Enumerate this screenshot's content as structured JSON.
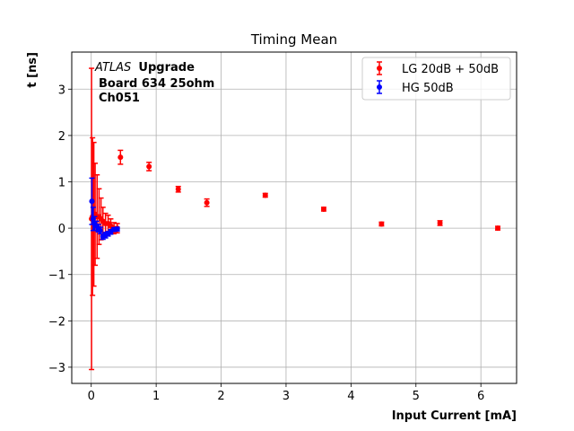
{
  "chart_data": {
    "type": "scatter",
    "title": "Timing Mean",
    "xlabel": "Input Current [mA]",
    "ylabel": "t [ns]",
    "xlim": [
      -0.3,
      6.55
    ],
    "ylim": [
      -3.35,
      3.8
    ],
    "xticks": [
      0,
      1,
      2,
      3,
      4,
      5,
      6
    ],
    "yticks": [
      -3,
      -2,
      -1,
      0,
      1,
      2,
      3
    ],
    "xtick_labels": [
      "0",
      "1",
      "2",
      "3",
      "4",
      "5",
      "6"
    ],
    "ytick_labels": [
      "−3",
      "−2",
      "−1",
      "0",
      "1",
      "2",
      "3"
    ],
    "grid": true,
    "legend_position": "top-right",
    "annotation": {
      "atlas": "ATLAS",
      "upgrade": "Upgrade",
      "line2": "Board 634 25ohm",
      "line3": "Ch051"
    },
    "series": [
      {
        "name": "LG 20dB + 50dB",
        "color": "#ff0000",
        "points": [
          {
            "x": 0.005,
            "y": 0.2,
            "err": 3.25
          },
          {
            "x": 0.02,
            "y": 0.25,
            "err": 1.7
          },
          {
            "x": 0.04,
            "y": 0.3,
            "err": 1.55
          },
          {
            "x": 0.06,
            "y": 0.3,
            "err": 1.1
          },
          {
            "x": 0.09,
            "y": 0.25,
            "err": 0.9
          },
          {
            "x": 0.12,
            "y": 0.25,
            "err": 0.6
          },
          {
            "x": 0.15,
            "y": 0.2,
            "err": 0.45
          },
          {
            "x": 0.18,
            "y": 0.15,
            "err": 0.3
          },
          {
            "x": 0.22,
            "y": 0.1,
            "err": 0.22
          },
          {
            "x": 0.26,
            "y": 0.1,
            "err": 0.18
          },
          {
            "x": 0.3,
            "y": 0.05,
            "err": 0.15
          },
          {
            "x": 0.35,
            "y": 0.0,
            "err": 0.12
          },
          {
            "x": 0.4,
            "y": 0.0,
            "err": 0.1
          },
          {
            "x": 0.45,
            "y": 1.53,
            "err": 0.15
          },
          {
            "x": 0.89,
            "y": 1.33,
            "err": 0.09
          },
          {
            "x": 1.34,
            "y": 0.84,
            "err": 0.06
          },
          {
            "x": 1.78,
            "y": 0.55,
            "err": 0.08
          },
          {
            "x": 2.68,
            "y": 0.71,
            "err": 0.04
          },
          {
            "x": 3.58,
            "y": 0.41,
            "err": 0.04
          },
          {
            "x": 4.47,
            "y": 0.09,
            "err": 0.04
          },
          {
            "x": 5.37,
            "y": 0.11,
            "err": 0.05
          },
          {
            "x": 6.26,
            "y": 0.0,
            "err": 0.04
          }
        ]
      },
      {
        "name": "HG 50dB",
        "color": "#0000ff",
        "points": [
          {
            "x": 0.01,
            "y": 0.58,
            "err": 0.5
          },
          {
            "x": 0.03,
            "y": 0.2,
            "err": 0.25
          },
          {
            "x": 0.05,
            "y": 0.1,
            "err": 0.15
          },
          {
            "x": 0.08,
            "y": 0.05,
            "err": 0.1
          },
          {
            "x": 0.11,
            "y": 0.0,
            "err": 0.08
          },
          {
            "x": 0.14,
            "y": -0.05,
            "err": 0.07
          },
          {
            "x": 0.18,
            "y": -0.18,
            "err": 0.06
          },
          {
            "x": 0.22,
            "y": -0.15,
            "err": 0.06
          },
          {
            "x": 0.26,
            "y": -0.12,
            "err": 0.05
          },
          {
            "x": 0.3,
            "y": -0.08,
            "err": 0.05
          },
          {
            "x": 0.35,
            "y": -0.03,
            "err": 0.04
          },
          {
            "x": 0.4,
            "y": -0.02,
            "err": 0.04
          }
        ]
      }
    ]
  }
}
